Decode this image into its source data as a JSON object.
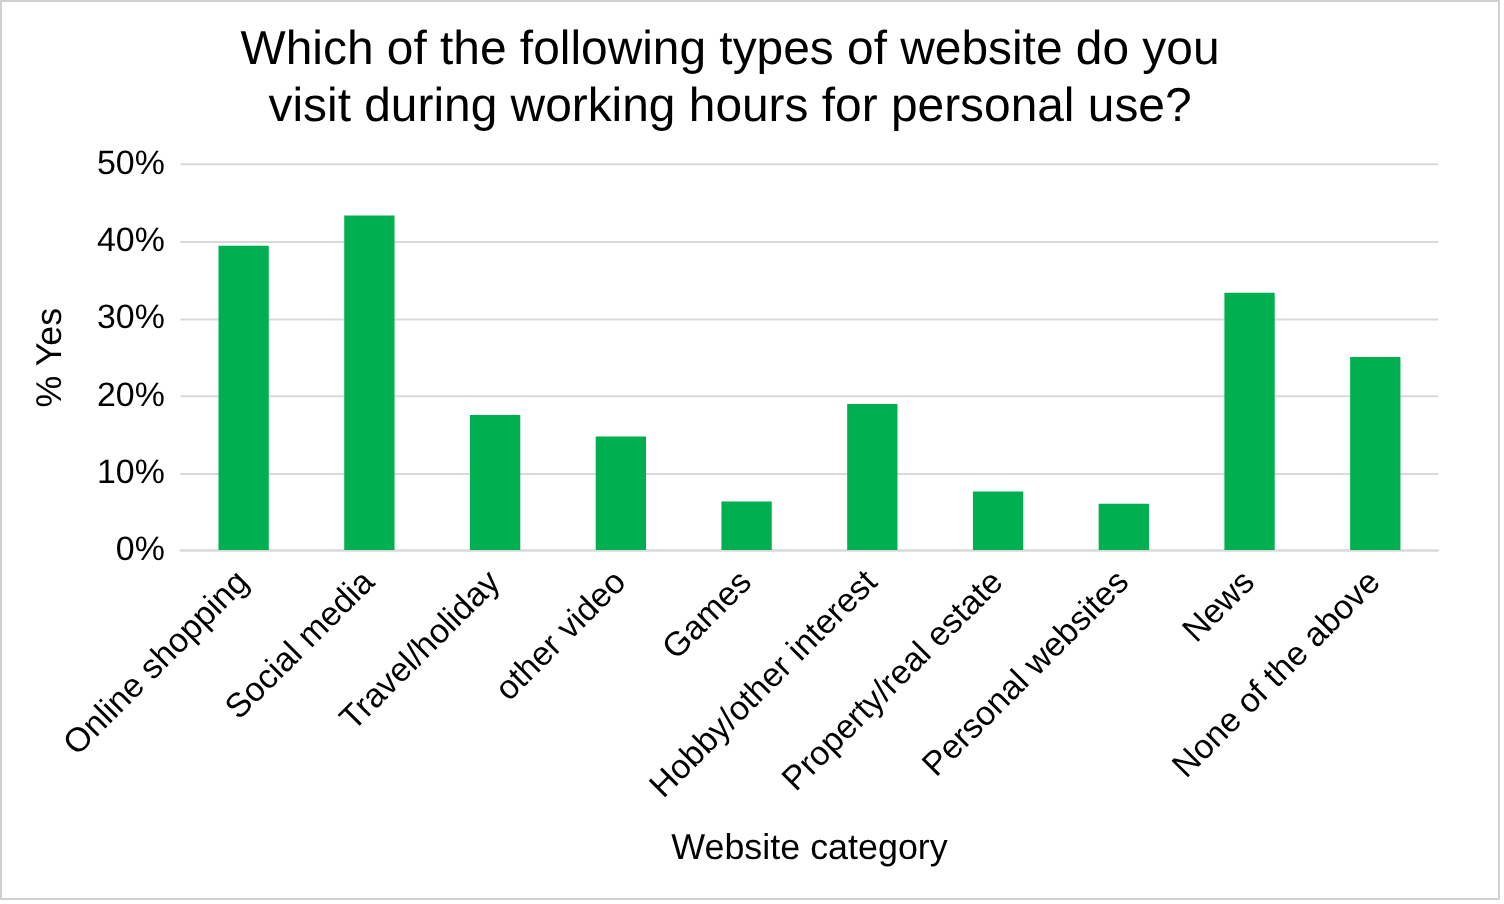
{
  "chart_data": {
    "type": "bar",
    "title": [
      "Which of the following types of website do you",
      "visit during working hours for personal use?"
    ],
    "xlabel": "Website category",
    "ylabel": "% Yes",
    "categories": [
      "Online shopping",
      "Social media",
      "Travel/holiday",
      "other video",
      "Games",
      "Hobby/other interest",
      "Property/real estate",
      "Personal websites",
      "News",
      "None of the above"
    ],
    "values": [
      39.5,
      43.4,
      17.6,
      14.8,
      6.4,
      19.0,
      7.7,
      6.1,
      33.4,
      25.1
    ],
    "color": "#00b050",
    "ylim": [
      0,
      50
    ],
    "yticks": [
      {
        "value": 0,
        "label": "0%"
      },
      {
        "value": 10,
        "label": "10%"
      },
      {
        "value": 20,
        "label": "20%"
      },
      {
        "value": 30,
        "label": "30%"
      },
      {
        "value": 40,
        "label": "40%"
      },
      {
        "value": 50,
        "label": "50%"
      }
    ],
    "grid": "y",
    "legend": false
  }
}
